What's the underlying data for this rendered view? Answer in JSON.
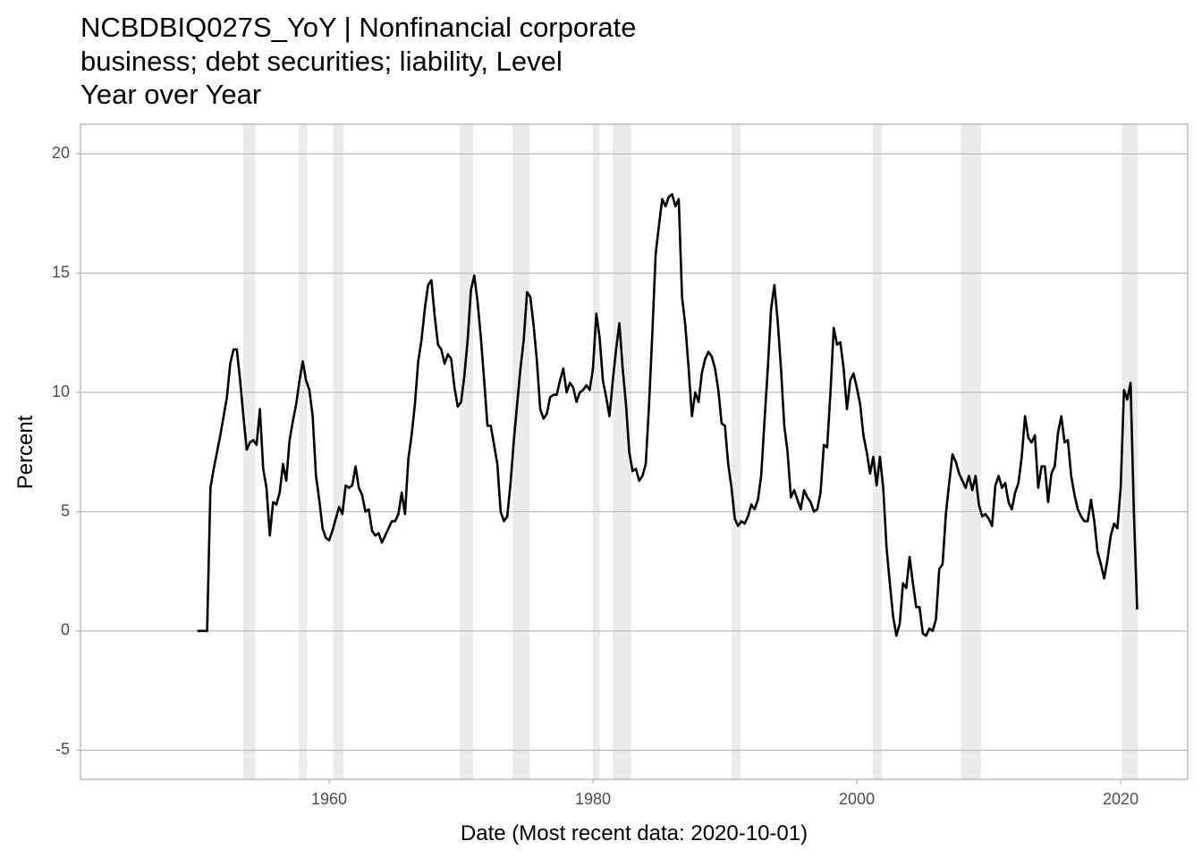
{
  "chart_data": {
    "type": "line",
    "title_lines": [
      "NCBDBIQ027S_YoY | Nonfinancial corporate",
      "business; debt securities; liability, Level",
      "Year over Year"
    ],
    "xlabel": "Date (Most recent data: 2020-10-01)",
    "ylabel": "Percent",
    "color": "#000000",
    "x": [
      1950,
      1950.25,
      1950.5,
      1950.75,
      1951,
      1951.25,
      1951.5,
      1951.75,
      1952,
      1952.25,
      1952.5,
      1952.75,
      1953,
      1953.25,
      1953.5,
      1953.75,
      1954,
      1954.25,
      1954.5,
      1954.75,
      1955,
      1955.25,
      1955.5,
      1955.75,
      1956,
      1956.25,
      1956.5,
      1956.75,
      1957,
      1957.25,
      1957.5,
      1957.75,
      1958,
      1958.25,
      1958.5,
      1958.75,
      1959,
      1959.25,
      1959.5,
      1959.75,
      1960,
      1960.25,
      1960.5,
      1960.75,
      1961,
      1961.25,
      1961.5,
      1961.75,
      1962,
      1962.25,
      1962.5,
      1962.75,
      1963,
      1963.25,
      1963.5,
      1963.75,
      1964,
      1964.25,
      1964.5,
      1964.75,
      1965,
      1965.25,
      1965.5,
      1965.75,
      1966,
      1966.25,
      1966.5,
      1966.75,
      1967,
      1967.25,
      1967.5,
      1967.75,
      1968,
      1968.25,
      1968.5,
      1968.75,
      1969,
      1969.25,
      1969.5,
      1969.75,
      1970,
      1970.25,
      1970.5,
      1970.75,
      1971,
      1971.25,
      1971.5,
      1971.75,
      1972,
      1972.25,
      1972.5,
      1972.75,
      1973,
      1973.25,
      1973.5,
      1973.75,
      1974,
      1974.25,
      1974.5,
      1974.75,
      1975,
      1975.25,
      1975.5,
      1975.75,
      1976,
      1976.25,
      1976.5,
      1976.75,
      1977,
      1977.25,
      1977.5,
      1977.75,
      1978,
      1978.25,
      1978.5,
      1978.75,
      1979,
      1979.25,
      1979.5,
      1979.75,
      1980,
      1980.25,
      1980.5,
      1980.75,
      1981,
      1981.25,
      1981.5,
      1981.75,
      1982,
      1982.25,
      1982.5,
      1982.75,
      1983,
      1983.25,
      1983.5,
      1983.75,
      1984,
      1984.25,
      1984.5,
      1984.75,
      1985,
      1985.25,
      1985.5,
      1985.75,
      1986,
      1986.25,
      1986.5,
      1986.75,
      1987,
      1987.25,
      1987.5,
      1987.75,
      1988,
      1988.25,
      1988.5,
      1988.75,
      1989,
      1989.25,
      1989.5,
      1989.75,
      1990,
      1990.25,
      1990.5,
      1990.75,
      1991,
      1991.25,
      1991.5,
      1991.75,
      1992,
      1992.25,
      1992.5,
      1992.75,
      1993,
      1993.25,
      1993.5,
      1993.75,
      1994,
      1994.25,
      1994.5,
      1994.75,
      1995,
      1995.25,
      1995.5,
      1995.75,
      1996,
      1996.25,
      1996.5,
      1996.75,
      1997,
      1997.25,
      1997.5,
      1997.75,
      1998,
      1998.25,
      1998.5,
      1998.75,
      1999,
      1999.25,
      1999.5,
      1999.75,
      2000,
      2000.25,
      2000.5,
      2000.75,
      2001,
      2001.25,
      2001.5,
      2001.75,
      2002,
      2002.25,
      2002.5,
      2002.75,
      2003,
      2003.25,
      2003.5,
      2003.75,
      2004,
      2004.25,
      2004.5,
      2004.75,
      2005,
      2005.25,
      2005.5,
      2005.75,
      2006,
      2006.25,
      2006.5,
      2006.75,
      2007,
      2007.25,
      2007.5,
      2007.75,
      2008,
      2008.25,
      2008.5,
      2008.75,
      2009,
      2009.25,
      2009.5,
      2009.75,
      2010,
      2010.25,
      2010.5,
      2010.75,
      2011,
      2011.25,
      2011.5,
      2011.75,
      2012,
      2012.25,
      2012.5,
      2012.75,
      2013,
      2013.25,
      2013.5,
      2013.75,
      2014,
      2014.25,
      2014.5,
      2014.75,
      2015,
      2015.25,
      2015.5,
      2015.75,
      2016,
      2016.25,
      2016.5,
      2016.75,
      2017,
      2017.25,
      2017.5,
      2017.75,
      2018,
      2018.25,
      2018.5,
      2018.75,
      2019,
      2019.25,
      2019.5,
      2019.75,
      2020,
      2020.25,
      2020.5,
      2020.75,
      2021,
      2021.25
    ],
    "values": [
      0,
      0,
      0,
      0,
      6.0,
      6.8,
      7.5,
      8.2,
      9.0,
      9.8,
      11.2,
      11.8,
      11.8,
      10.5,
      9.0,
      7.6,
      7.9,
      8.0,
      7.8,
      9.3,
      6.8,
      6.0,
      4.0,
      5.4,
      5.3,
      5.8,
      7.0,
      6.3,
      8.0,
      8.8,
      9.5,
      10.5,
      11.3,
      10.5,
      10.1,
      9.0,
      6.5,
      5.5,
      4.3,
      3.9,
      3.8,
      4.2,
      4.7,
      5.2,
      4.9,
      6.1,
      6.0,
      6.1,
      6.9,
      6.0,
      5.7,
      5.0,
      5.1,
      4.2,
      4.0,
      4.1,
      3.7,
      4.0,
      4.3,
      4.6,
      4.6,
      4.9,
      5.8,
      4.9,
      7.2,
      8.2,
      9.5,
      11.3,
      12.2,
      13.5,
      14.5,
      14.7,
      13.2,
      12.0,
      11.8,
      11.2,
      11.6,
      11.4,
      10.2,
      9.4,
      9.6,
      10.7,
      12.2,
      14.3,
      14.9,
      13.8,
      12.3,
      10.5,
      8.6,
      8.6,
      7.8,
      7.0,
      5.0,
      4.6,
      4.8,
      6.2,
      8.0,
      9.5,
      11.0,
      12.2,
      14.2,
      14.0,
      12.8,
      11.3,
      9.3,
      8.9,
      9.1,
      9.8,
      9.9,
      9.9,
      10.5,
      11.0,
      10.0,
      10.4,
      10.2,
      9.6,
      10.0,
      10.1,
      10.3,
      10.1,
      11.0,
      13.3,
      12.3,
      10.5,
      9.8,
      9.0,
      10.5,
      11.8,
      12.9,
      11.0,
      9.5,
      7.5,
      6.7,
      6.8,
      6.3,
      6.5,
      7.0,
      9.5,
      12.5,
      15.8,
      17.0,
      18.1,
      17.8,
      18.2,
      18.3,
      17.8,
      18.1,
      14.0,
      12.8,
      11.0,
      9.0,
      10.0,
      9.6,
      10.8,
      11.4,
      11.7,
      11.5,
      11.0,
      10.1,
      8.7,
      8.6,
      7.0,
      6.0,
      4.7,
      4.4,
      4.6,
      4.5,
      4.8,
      5.3,
      5.1,
      5.5,
      6.5,
      8.8,
      11.0,
      13.5,
      14.5,
      13.0,
      11.0,
      8.6,
      7.5,
      5.6,
      5.9,
      5.5,
      5.1,
      5.9,
      5.6,
      5.4,
      5.0,
      5.1,
      5.8,
      7.8,
      7.7,
      10.0,
      12.7,
      12.0,
      12.1,
      11.0,
      9.3,
      10.5,
      10.8,
      10.2,
      9.5,
      8.2,
      7.5,
      6.6,
      7.3,
      6.1,
      7.3,
      6.0,
      3.5,
      2.0,
      0.6,
      -0.2,
      0.3,
      2.0,
      1.8,
      3.1,
      2.0,
      1.0,
      1.0,
      -0.1,
      -0.2,
      0.1,
      0.0,
      0.5,
      2.6,
      2.8,
      4.9,
      6.2,
      7.4,
      7.1,
      6.6,
      6.3,
      6.0,
      6.5,
      5.9,
      6.5,
      5.3,
      4.8,
      4.9,
      4.7,
      4.4,
      6.1,
      6.5,
      6.0,
      6.2,
      5.4,
      5.1,
      5.8,
      6.2,
      7.3,
      9.0,
      8.1,
      7.9,
      8.2,
      6.0,
      6.9,
      6.9,
      5.4,
      6.6,
      6.9,
      8.3,
      9.0,
      7.9,
      8.0,
      6.5,
      5.7,
      5.1,
      4.8,
      4.6,
      4.6,
      5.5,
      4.6,
      3.3,
      2.8,
      2.2,
      3.0,
      4.0,
      4.5,
      4.3,
      6.0,
      10.1,
      9.7,
      10.4,
      5.0,
      0.9
    ],
    "recessions": [
      [
        1953.5,
        1954.4
      ],
      [
        1957.7,
        1958.3
      ],
      [
        1960.3,
        1961.1
      ],
      [
        1969.9,
        1970.9
      ],
      [
        1973.9,
        1975.2
      ],
      [
        1980.0,
        1980.5
      ],
      [
        1981.5,
        1982.9
      ],
      [
        1990.5,
        1991.2
      ],
      [
        2001.2,
        2001.9
      ],
      [
        2007.9,
        2009.4
      ],
      [
        2020.1,
        2021.3
      ]
    ],
    "recession_color": "#ebebeb",
    "xlim": [
      1941.15,
      2025.08
    ],
    "ylim": [
      -6.22,
      21.24
    ],
    "xticks": [
      1960,
      1980,
      2000,
      2020
    ],
    "yticks": [
      -5,
      0,
      5,
      10,
      15,
      20
    ],
    "grid": "y"
  }
}
